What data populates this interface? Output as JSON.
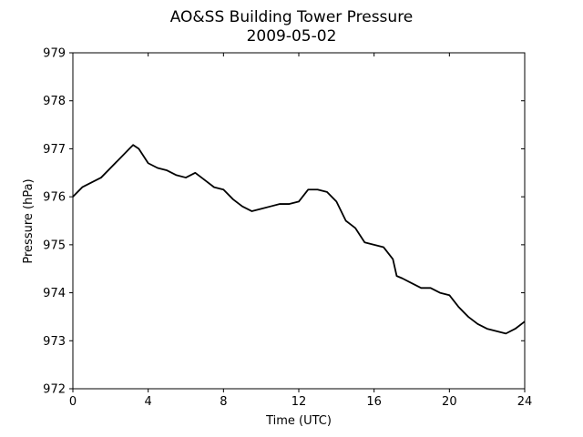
{
  "chart_data": {
    "type": "line",
    "title": "AO&SS Building Tower Pressure",
    "subtitle": "2009-05-02",
    "x_label": "Time (UTC)",
    "y_label": "Pressure (hPa)",
    "x": [
      0,
      0.5,
      1,
      1.5,
      2,
      2.5,
      3,
      3.2,
      3.5,
      4,
      4.5,
      5,
      5.5,
      6,
      6.5,
      7,
      7.5,
      8,
      8.5,
      9,
      9.5,
      10,
      10.5,
      11,
      11.5,
      12,
      12.5,
      13,
      13.5,
      14,
      14.5,
      15,
      15.5,
      16,
      16.5,
      17,
      17.2,
      17.5,
      18,
      18.5,
      19,
      19.5,
      20,
      20.5,
      21,
      21.5,
      22,
      22.5,
      23,
      23.5,
      24
    ],
    "series": [
      {
        "name": "Pressure",
        "color": "#000000",
        "values": [
          976.0,
          976.2,
          976.3,
          976.4,
          976.6,
          976.8,
          977.0,
          977.08,
          977.0,
          976.7,
          976.6,
          976.55,
          976.45,
          976.4,
          976.5,
          976.35,
          976.2,
          976.15,
          975.95,
          975.8,
          975.7,
          975.75,
          975.8,
          975.85,
          975.85,
          975.9,
          976.15,
          976.15,
          976.1,
          975.9,
          975.5,
          975.35,
          975.05,
          975.0,
          974.95,
          974.7,
          974.35,
          974.3,
          974.2,
          974.1,
          974.1,
          974.0,
          973.95,
          973.7,
          973.5,
          973.35,
          973.25,
          973.2,
          973.15,
          973.25,
          973.4
        ]
      }
    ],
    "xlim": [
      0,
      24
    ],
    "xticks": [
      0,
      4,
      8,
      12,
      16,
      20,
      24
    ],
    "ylim": [
      972,
      979
    ],
    "yticks": [
      972,
      973,
      974,
      975,
      976,
      977,
      978,
      979
    ],
    "grid": false
  }
}
